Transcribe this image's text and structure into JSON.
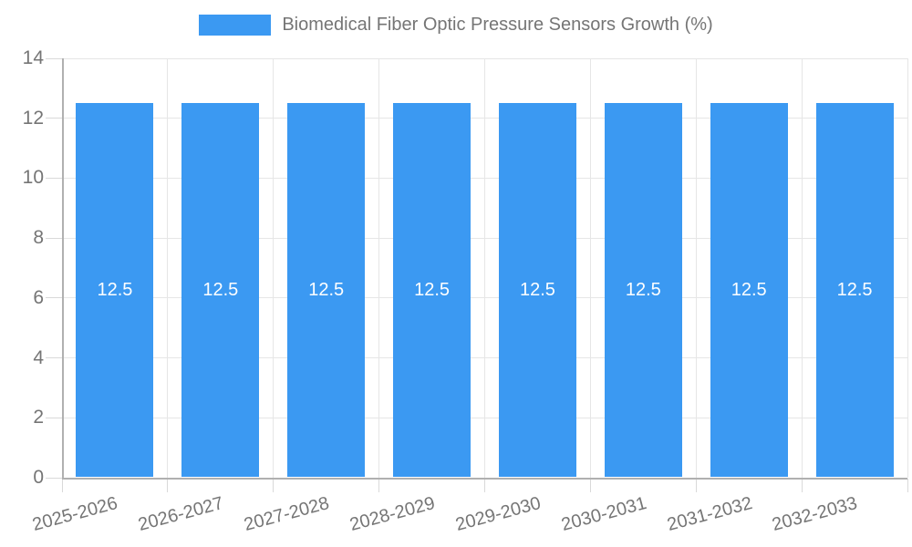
{
  "chart_data": {
    "type": "bar",
    "legend_label": "Biomedical Fiber Optic Pressure Sensors Growth (%)",
    "legend_position": "top",
    "categories": [
      "2025-2026",
      "2026-2027",
      "2027-2028",
      "2028-2029",
      "2029-2030",
      "2030-2031",
      "2031-2032",
      "2032-2033"
    ],
    "values": [
      12.5,
      12.5,
      12.5,
      12.5,
      12.5,
      12.5,
      12.5,
      12.5
    ],
    "value_labels": [
      "12.5",
      "12.5",
      "12.5",
      "12.5",
      "12.5",
      "12.5",
      "12.5",
      "12.5"
    ],
    "xlabel": "",
    "ylabel": "",
    "ylim": [
      0,
      14
    ],
    "yticks": [
      0,
      2,
      4,
      6,
      8,
      10,
      12,
      14
    ],
    "ytick_labels": [
      "0",
      "2",
      "4",
      "6",
      "8",
      "10",
      "12",
      "14"
    ],
    "grid": true,
    "x_label_rotation_deg": -15,
    "colors": {
      "bar": "#3b99f2",
      "bar_value_label": "#ffffff",
      "axis_text": "#757575",
      "gridline": "#e6e6e6",
      "axis_line": "#b0b0b0",
      "tick": "#d9d9d9",
      "background": "#ffffff"
    }
  }
}
